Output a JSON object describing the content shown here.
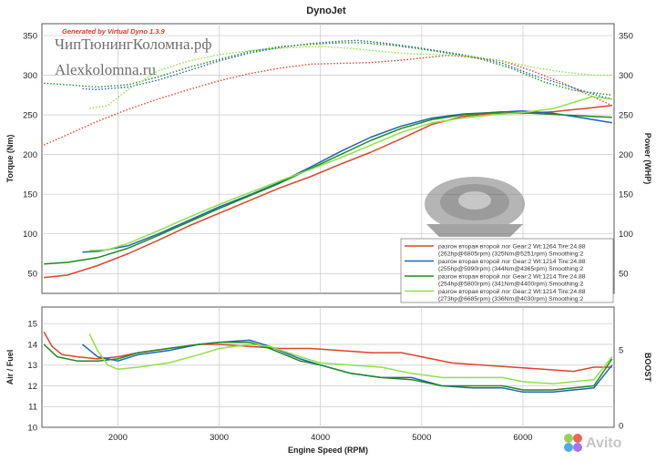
{
  "header": {
    "title": "DynoJet",
    "generator": "Generated by Virtual Dyno 1.3.9",
    "watermark_line1": "ЧипТюнингКоломна.рф",
    "watermark_line2": "Alexkolomna.ru",
    "avito_logo_text": "Avito"
  },
  "colors": {
    "red": "#d9452c",
    "blue": "#1f63b3",
    "green": "#1f8a22",
    "lightgreen": "#8ee04a",
    "grid": "#c8c8c8",
    "frame": "#555555",
    "generator_text": "#d23a2a"
  },
  "chart_data": [
    {
      "type": "line",
      "title": "DynoJet",
      "xlabel": "Engine Speed (RPM)",
      "ylabel": "Torque (Nm)",
      "y2label": "Power (WHP)",
      "xlim": [
        1250,
        6900
      ],
      "ylim": [
        25,
        365
      ],
      "y2lim": [
        25,
        365
      ],
      "x_ticks": [
        2000,
        3000,
        4000,
        5000,
        6000
      ],
      "y_ticks": [
        50,
        100,
        150,
        200,
        250,
        300,
        350
      ],
      "y2_ticks": [
        50,
        100,
        150,
        200,
        250,
        300,
        350
      ],
      "grid": true,
      "legend_position": "bottom-right",
      "legend": [
        {
          "line1": "разгон вторая второй лог  Gear:2 Wt:1264 Tire:24.88",
          "line2": "(262hp@6805rpm) (325Nm@5251rpm) Smoothing:2",
          "color": "red"
        },
        {
          "line1": "разгон вторая второй лог  Gear:2 Wt:1214 Tire:24.88",
          "line2": "(255hp@5990rpm) (344Nm@4365rpm) Smoothing:2",
          "color": "blue"
        },
        {
          "line1": "разгон вторая второй лог  Gear:2 Wt:1214 Tire:24.88",
          "line2": "(254hp@5800rpm) (341Nm@4400rpm) Smoothing:2",
          "color": "green"
        },
        {
          "line1": "разгон вторая второй лог  Gear:2 Wt:1214 Tire:24.88",
          "line2": "(273hp@6685rpm) (336Nm@4030rpm) Smoothing:2",
          "color": "lightgreen"
        }
      ],
      "series": [
        {
          "kind": "power",
          "color": "red",
          "style": "solid",
          "x": [
            1270,
            1500,
            1800,
            2100,
            2400,
            2700,
            3000,
            3300,
            3600,
            3900,
            4200,
            4500,
            4800,
            5100,
            5400,
            5700,
            6000,
            6300,
            6600,
            6880
          ],
          "y": [
            45,
            48,
            60,
            75,
            92,
            110,
            126,
            142,
            158,
            172,
            188,
            203,
            220,
            238,
            248,
            252,
            252,
            254,
            258,
            262
          ]
        },
        {
          "kind": "torque",
          "color": "red",
          "style": "dotted",
          "x": [
            1270,
            1500,
            1800,
            2100,
            2400,
            2700,
            3000,
            3300,
            3600,
            3900,
            4200,
            4500,
            4800,
            5100,
            5250,
            5500,
            5800,
            6100,
            6400,
            6600,
            6880
          ],
          "y": [
            212,
            225,
            242,
            257,
            270,
            282,
            293,
            302,
            309,
            314,
            315,
            316,
            319,
            323,
            325,
            323,
            318,
            305,
            290,
            278,
            262
          ]
        },
        {
          "kind": "power",
          "color": "blue",
          "style": "solid",
          "x": [
            1650,
            1800,
            2100,
            2400,
            2700,
            3000,
            3300,
            3600,
            3900,
            4200,
            4500,
            4800,
            5100,
            5400,
            5700,
            5990,
            6300,
            6600,
            6880
          ],
          "y": [
            77,
            78,
            85,
            100,
            117,
            134,
            149,
            165,
            184,
            204,
            222,
            236,
            246,
            251,
            253,
            255,
            252,
            246,
            240
          ]
        },
        {
          "kind": "torque",
          "color": "blue",
          "style": "dotted",
          "x": [
            1650,
            1800,
            2100,
            2400,
            2700,
            3000,
            3300,
            3600,
            3900,
            4200,
            4365,
            4600,
            4900,
            5200,
            5500,
            5800,
            6100,
            6400,
            6700,
            6880
          ],
          "y": [
            283,
            282,
            285,
            294,
            306,
            318,
            328,
            335,
            340,
            343,
            344,
            341,
            336,
            330,
            324,
            315,
            300,
            288,
            276,
            270
          ]
        },
        {
          "kind": "power",
          "color": "green",
          "style": "solid",
          "x": [
            1270,
            1500,
            1800,
            2100,
            2400,
            2700,
            3000,
            3300,
            3600,
            3900,
            4200,
            4500,
            4800,
            5100,
            5400,
            5800,
            6100,
            6400,
            6700,
            6880
          ],
          "y": [
            62,
            64,
            70,
            82,
            98,
            115,
            132,
            148,
            164,
            182,
            200,
            218,
            233,
            244,
            250,
            254,
            252,
            250,
            248,
            247
          ]
        },
        {
          "kind": "torque",
          "color": "green",
          "style": "dotted",
          "x": [
            1270,
            1500,
            1800,
            2100,
            2400,
            2700,
            3000,
            3300,
            3600,
            3900,
            4200,
            4400,
            4700,
            5000,
            5300,
            5600,
            5900,
            6200,
            6500,
            6880
          ],
          "y": [
            290,
            288,
            285,
            288,
            298,
            310,
            320,
            330,
            336,
            339,
            341,
            341,
            338,
            333,
            327,
            320,
            308,
            292,
            281,
            275
          ]
        },
        {
          "kind": "power",
          "color": "lightgreen",
          "style": "solid",
          "x": [
            1720,
            1900,
            2100,
            2400,
            2700,
            3000,
            3300,
            3600,
            3900,
            4200,
            4500,
            4800,
            5100,
            5400,
            5700,
            6000,
            6300,
            6685,
            6880
          ],
          "y": [
            79,
            80,
            88,
            104,
            121,
            137,
            152,
            167,
            181,
            196,
            212,
            228,
            240,
            246,
            250,
            253,
            258,
            273,
            270
          ]
        },
        {
          "kind": "torque",
          "color": "lightgreen",
          "style": "dotted",
          "x": [
            1720,
            1900,
            2100,
            2400,
            2700,
            3000,
            3300,
            3600,
            3900,
            4030,
            4300,
            4600,
            4900,
            5200,
            5500,
            5800,
            6100,
            6400,
            6700,
            6880
          ],
          "y": [
            258,
            262,
            282,
            306,
            318,
            326,
            331,
            334,
            336,
            336,
            334,
            330,
            327,
            326,
            324,
            318,
            310,
            304,
            300,
            300
          ]
        }
      ]
    },
    {
      "type": "line",
      "xlabel": "Engine Speed (RPM)",
      "ylabel": "Air / Fuel",
      "y2label": "BOOST",
      "xlim": [
        1250,
        6900
      ],
      "ylim": [
        10,
        15.8
      ],
      "y_ticks": [
        10,
        11,
        12,
        13,
        14,
        15
      ],
      "y2_ticks": [
        0,
        5
      ],
      "grid": true,
      "series": [
        {
          "color": "red",
          "x": [
            1270,
            1350,
            1450,
            1600,
            1800,
            2000,
            2200,
            2500,
            2800,
            3000,
            3300,
            3600,
            3900,
            4200,
            4500,
            4800,
            5100,
            5300,
            5600,
            5900,
            6200,
            6500,
            6700,
            6880
          ],
          "y": [
            14.6,
            13.9,
            13.5,
            13.4,
            13.3,
            13.4,
            13.6,
            13.8,
            14.0,
            14.0,
            13.9,
            13.8,
            13.8,
            13.7,
            13.6,
            13.6,
            13.3,
            13.1,
            13.0,
            12.9,
            12.8,
            12.7,
            12.9,
            12.9
          ]
        },
        {
          "color": "blue",
          "x": [
            1650,
            1800,
            2000,
            2200,
            2500,
            2800,
            3000,
            3300,
            3500,
            3800,
            4000,
            4300,
            4600,
            4900,
            5200,
            5500,
            5800,
            6000,
            6300,
            6500,
            6700,
            6880
          ],
          "y": [
            14.0,
            13.4,
            13.2,
            13.5,
            13.7,
            14.0,
            14.1,
            14.2,
            13.9,
            13.3,
            13.0,
            12.6,
            12.4,
            12.4,
            12.0,
            11.9,
            11.9,
            11.7,
            11.7,
            11.8,
            11.9,
            13.0
          ]
        },
        {
          "color": "green",
          "x": [
            1270,
            1400,
            1600,
            1800,
            2000,
            2200,
            2500,
            2800,
            3000,
            3300,
            3500,
            3800,
            4000,
            4300,
            4600,
            4900,
            5200,
            5500,
            5800,
            6000,
            6300,
            6500,
            6700,
            6880
          ],
          "y": [
            14.0,
            13.4,
            13.2,
            13.2,
            13.3,
            13.6,
            13.8,
            14.0,
            14.1,
            14.1,
            13.8,
            13.2,
            13.0,
            12.6,
            12.4,
            12.3,
            12.0,
            12.0,
            12.0,
            11.8,
            11.8,
            11.9,
            12.0,
            13.3
          ]
        },
        {
          "color": "lightgreen",
          "x": [
            1720,
            1800,
            1900,
            2000,
            2200,
            2500,
            2800,
            3000,
            3300,
            3500,
            3800,
            4000,
            4300,
            4600,
            4900,
            5200,
            5500,
            5800,
            6000,
            6300,
            6500,
            6700,
            6880
          ],
          "y": [
            14.5,
            13.7,
            13.0,
            12.8,
            12.9,
            13.1,
            13.5,
            13.8,
            14.0,
            13.9,
            13.4,
            13.1,
            13.0,
            12.9,
            12.6,
            12.4,
            12.4,
            12.4,
            12.2,
            12.1,
            12.2,
            12.3,
            13.4
          ]
        }
      ]
    }
  ]
}
